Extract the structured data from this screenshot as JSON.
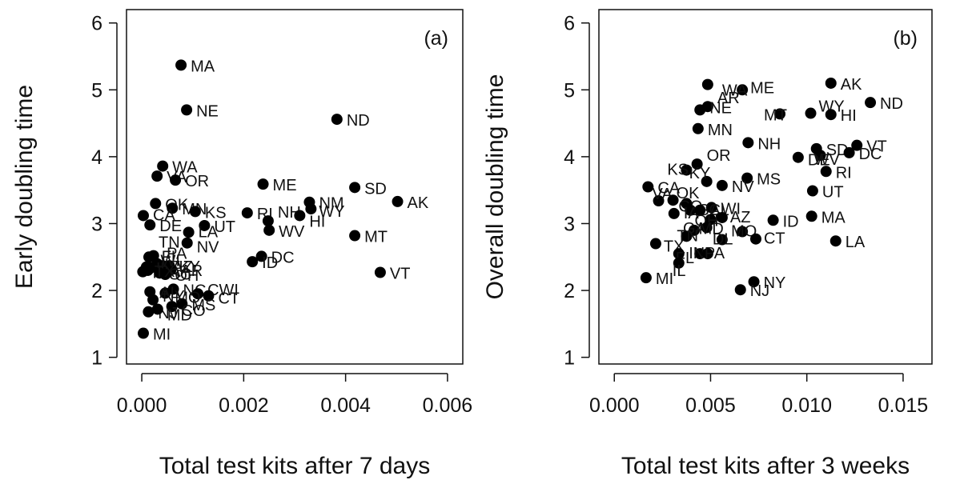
{
  "chart_data": [
    {
      "type": "scatter",
      "panel_tag": "(a)",
      "xlabel": "Total test kits after 7 days",
      "ylabel": "Early doubling time",
      "xlim": [
        -0.0003,
        0.0063
      ],
      "ylim": [
        0.9,
        6.2
      ],
      "xticks": [
        0,
        0.002,
        0.004,
        0.006
      ],
      "xtick_labels": [
        "0.000",
        "0.002",
        "0.004",
        "0.006"
      ],
      "yticks": [
        1,
        2,
        3,
        4,
        5,
        6
      ],
      "ytick_labels": [
        "1",
        "2",
        "3",
        "4",
        "5",
        "6"
      ],
      "grid": false,
      "points": [
        {
          "label": "MA",
          "x": 0.00077,
          "y": 5.37
        },
        {
          "label": "NE",
          "x": 0.00088,
          "y": 4.7
        },
        {
          "label": "ND",
          "x": 0.00383,
          "y": 4.56
        },
        {
          "label": "WA",
          "x": 0.00041,
          "y": 3.86
        },
        {
          "label": "VA",
          "x": 0.0003,
          "y": 3.71
        },
        {
          "label": "OR",
          "x": 0.00066,
          "y": 3.65
        },
        {
          "label": "ME",
          "x": 0.00238,
          "y": 3.59
        },
        {
          "label": "SD",
          "x": 0.00418,
          "y": 3.54
        },
        {
          "label": "AK",
          "x": 0.00502,
          "y": 3.33
        },
        {
          "label": "NM",
          "x": 0.00329,
          "y": 3.32
        },
        {
          "label": "OK",
          "x": 0.00027,
          "y": 3.3
        },
        {
          "label": "MN",
          "x": 0.0006,
          "y": 3.23
        },
        {
          "label": "KS",
          "x": 0.00105,
          "y": 3.18
        },
        {
          "label": "WY",
          "x": 0.00332,
          "y": 3.22
        },
        {
          "label": "RI",
          "x": 0.00207,
          "y": 3.16
        },
        {
          "label": "NH",
          "x": 0.00248,
          "y": 3.04
        },
        {
          "label": "HI",
          "x": 0.0031,
          "y": 3.12
        },
        {
          "label": "CA",
          "x": 3e-05,
          "y": 3.12
        },
        {
          "label": "DE",
          "x": 0.00016,
          "y": 2.98
        },
        {
          "label": "UT",
          "x": 0.00123,
          "y": 2.97
        },
        {
          "label": "LA",
          "x": 0.00092,
          "y": 2.87
        },
        {
          "label": "WV",
          "x": 0.0025,
          "y": 2.9
        },
        {
          "label": "MT",
          "x": 0.00418,
          "y": 2.82
        },
        {
          "label": "NV",
          "x": 0.00089,
          "y": 2.71
        },
        {
          "label": "DC",
          "x": 0.00235,
          "y": 2.51
        },
        {
          "label": "ID",
          "x": 0.00217,
          "y": 2.43
        },
        {
          "label": "VT",
          "x": 0.00468,
          "y": 2.27
        },
        {
          "label": "TN",
          "x": 0.00014,
          "y": 2.5
        },
        {
          "label": "FL",
          "x": 0.00023,
          "y": 2.52
        },
        {
          "label": "KY",
          "x": 0.00054,
          "y": 2.37
        },
        {
          "label": "PA",
          "x": 0.0003,
          "y": 2.4
        },
        {
          "label": "AZ",
          "x": 0.00041,
          "y": 2.37
        },
        {
          "label": "IL",
          "x": 9e-05,
          "y": 2.35
        },
        {
          "label": "GA",
          "x": 0.00012,
          "y": 2.3
        },
        {
          "label": "AR",
          "x": 0.00057,
          "y": 2.31
        },
        {
          "label": "IN",
          "x": 2e-05,
          "y": 2.28
        },
        {
          "label": "SC",
          "x": 0.00035,
          "y": 2.26
        },
        {
          "label": "WI",
          "x": 0.00018,
          "y": 2.34
        },
        {
          "label": "OH",
          "x": 0.00046,
          "y": 2.24
        },
        {
          "label": "TX",
          "x": 6e-05,
          "y": 2.3
        },
        {
          "label": "NC",
          "x": 0.00062,
          "y": 2.02
        },
        {
          "label": "CWI",
          "x": 0.0011,
          "y": 1.95
        },
        {
          "label": "CT",
          "x": 0.00131,
          "y": 1.92
        },
        {
          "label": "MO",
          "x": 0.00046,
          "y": 1.96
        },
        {
          "label": "AL",
          "x": 0.00016,
          "y": 1.98
        },
        {
          "label": "MS",
          "x": 0.00079,
          "y": 1.8
        },
        {
          "label": "CO",
          "x": 0.00059,
          "y": 1.76
        },
        {
          "label": "NY",
          "x": 0.00022,
          "y": 1.86
        },
        {
          "label": "NJ",
          "x": 0.00013,
          "y": 1.68
        },
        {
          "label": "MD",
          "x": 0.00031,
          "y": 1.72
        },
        {
          "label": "MI",
          "x": 3e-05,
          "y": 1.36
        }
      ]
    },
    {
      "type": "scatter",
      "panel_tag": "(b)",
      "xlabel": "Total test kits after 3 weeks",
      "ylabel": "Overall doubling time",
      "xlim": [
        -0.0008,
        0.0165
      ],
      "ylim": [
        0.9,
        6.2
      ],
      "xticks": [
        0,
        0.005,
        0.01,
        0.015
      ],
      "xtick_labels": [
        "0.000",
        "0.005",
        "0.010",
        "0.015"
      ],
      "yticks": [
        1,
        2,
        3,
        4,
        5,
        6
      ],
      "ytick_labels": [
        "1",
        "2",
        "3",
        "4",
        "5",
        "6"
      ],
      "grid": false,
      "points": [
        {
          "label": "AK",
          "x": 0.01125,
          "y": 5.1
        },
        {
          "label": "ME",
          "x": 0.00665,
          "y": 5.0
        },
        {
          "label": "WA",
          "x": 0.00485,
          "y": 5.08
        },
        {
          "label": "ND",
          "x": 0.0133,
          "y": 4.81
        },
        {
          "label": "AR",
          "x": 0.00485,
          "y": 4.75
        },
        {
          "label": "NE",
          "x": 0.00445,
          "y": 4.7
        },
        {
          "label": "MT",
          "x": 0.0086,
          "y": 4.64
        },
        {
          "label": "WY",
          "x": 0.0102,
          "y": 4.65
        },
        {
          "label": "HI",
          "x": 0.01125,
          "y": 4.63
        },
        {
          "label": "MN",
          "x": 0.00435,
          "y": 4.42
        },
        {
          "label": "NH",
          "x": 0.00695,
          "y": 4.21
        },
        {
          "label": "VT",
          "x": 0.0126,
          "y": 4.17
        },
        {
          "label": "SD",
          "x": 0.0105,
          "y": 4.12
        },
        {
          "label": "DC",
          "x": 0.0122,
          "y": 4.06
        },
        {
          "label": "WV",
          "x": 0.0107,
          "y": 4.02
        },
        {
          "label": "DE",
          "x": 0.00955,
          "y": 3.99
        },
        {
          "label": "OR",
          "x": 0.0043,
          "y": 3.89
        },
        {
          "label": "RI",
          "x": 0.011,
          "y": 3.78
        },
        {
          "label": "KS",
          "x": 0.00375,
          "y": 3.8
        },
        {
          "label": "MS",
          "x": 0.0069,
          "y": 3.68
        },
        {
          "label": "KY",
          "x": 0.0048,
          "y": 3.63
        },
        {
          "label": "NV",
          "x": 0.0056,
          "y": 3.57
        },
        {
          "label": "UT",
          "x": 0.0103,
          "y": 3.49
        },
        {
          "label": "CA",
          "x": 0.00175,
          "y": 3.55
        },
        {
          "label": "VA",
          "x": 0.0023,
          "y": 3.34
        },
        {
          "label": "OK",
          "x": 0.00305,
          "y": 3.35
        },
        {
          "label": "CO",
          "x": 0.00375,
          "y": 3.3
        },
        {
          "label": "WI",
          "x": 0.00505,
          "y": 3.24
        },
        {
          "label": "SC",
          "x": 0.00395,
          "y": 3.2
        },
        {
          "label": "IA",
          "x": 0.0031,
          "y": 3.15
        },
        {
          "label": "AL",
          "x": 0.00445,
          "y": 3.2
        },
        {
          "label": "MA",
          "x": 0.01025,
          "y": 3.11
        },
        {
          "label": "OH",
          "x": 0.005,
          "y": 3.06
        },
        {
          "label": "AZ",
          "x": 0.0056,
          "y": 3.09
        },
        {
          "label": "ID",
          "x": 0.00825,
          "y": 3.05
        },
        {
          "label": "GA",
          "x": 0.00415,
          "y": 2.9
        },
        {
          "label": "MD",
          "x": 0.0048,
          "y": 2.94
        },
        {
          "label": "MO",
          "x": 0.00665,
          "y": 2.88
        },
        {
          "label": "TN",
          "x": 0.00375,
          "y": 2.81
        },
        {
          "label": "CT",
          "x": 0.00735,
          "y": 2.77
        },
        {
          "label": "DL",
          "x": 0.0056,
          "y": 2.76
        },
        {
          "label": "LA",
          "x": 0.0115,
          "y": 2.74
        },
        {
          "label": "TX",
          "x": 0.00215,
          "y": 2.7
        },
        {
          "label": "FL",
          "x": 0.00335,
          "y": 2.55
        },
        {
          "label": "IN",
          "x": 0.00445,
          "y": 2.55
        },
        {
          "label": "PA",
          "x": 0.00485,
          "y": 2.55
        },
        {
          "label": "IL",
          "x": 0.00335,
          "y": 2.41
        },
        {
          "label": "MI",
          "x": 0.00165,
          "y": 2.19
        },
        {
          "label": "NY",
          "x": 0.00725,
          "y": 2.13
        },
        {
          "label": "NJ",
          "x": 0.00655,
          "y": 2.01
        }
      ]
    }
  ]
}
